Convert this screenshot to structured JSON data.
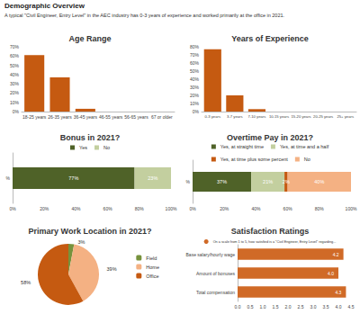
{
  "header": {
    "title": "Demographic Overview",
    "subtitle": "A typical \"Civil Engineer, Entry Level\" in the AEC industry has 0-3 years of experience and worked primarily at the office in 2021."
  },
  "chart_data": [
    {
      "type": "bar",
      "title": "Age Range",
      "categories": [
        "18-25 years",
        "26-35 years",
        "36-45 years",
        "46-55 years",
        "56-65 years",
        "67 or older"
      ],
      "values": [
        61,
        37,
        3,
        0,
        0,
        0
      ],
      "color": "#c55a11",
      "ylim": [
        0,
        70
      ],
      "yticks": [
        {
          "value": 0,
          "label": "0%"
        },
        {
          "value": 10,
          "label": "10%"
        },
        {
          "value": 20,
          "label": "20%"
        },
        {
          "value": 30,
          "label": "30%"
        },
        {
          "value": 40,
          "label": "40%"
        },
        {
          "value": 50,
          "label": "50%"
        },
        {
          "value": 60,
          "label": "60%"
        },
        {
          "value": 70,
          "label": "70%"
        }
      ],
      "grid": false
    },
    {
      "type": "bar",
      "title": "Years of Experience",
      "categories": [
        "0-3 years",
        "3-7 years",
        "7-10 years",
        "10-15 years",
        "15-20 years",
        "20-25 years",
        "25+ years"
      ],
      "values": [
        77,
        20,
        3,
        0,
        0,
        0,
        0
      ],
      "color": "#c55a11",
      "ylim": [
        0,
        80
      ],
      "yticks": [
        {
          "value": 0,
          "label": "0%"
        },
        {
          "value": 10,
          "label": "10%"
        },
        {
          "value": 20,
          "label": "20%"
        },
        {
          "value": 30,
          "label": "30%"
        },
        {
          "value": 40,
          "label": "40%"
        },
        {
          "value": 50,
          "label": "50%"
        },
        {
          "value": 60,
          "label": "60%"
        },
        {
          "value": 70,
          "label": "70%"
        },
        {
          "value": 80,
          "label": "80%"
        }
      ],
      "grid": false
    },
    {
      "type": "bar",
      "title": "Bonus in 2021?",
      "orientation": "horizontal",
      "stacked": true,
      "categories": [
        "%"
      ],
      "series": [
        {
          "name": "Yes",
          "color": "#4f6228",
          "values": [
            77
          ],
          "value_labels": [
            "77%"
          ]
        },
        {
          "name": "No",
          "color": "#c3cf9f",
          "values": [
            23
          ],
          "value_labels": [
            "23%"
          ]
        }
      ],
      "xlim": [
        0,
        100
      ],
      "xticks": [
        {
          "value": 0,
          "label": "0%"
        },
        {
          "value": 20,
          "label": "20%"
        },
        {
          "value": 40,
          "label": "40%"
        },
        {
          "value": 60,
          "label": "60%"
        },
        {
          "value": 80,
          "label": "80%"
        },
        {
          "value": 100,
          "label": "100%"
        }
      ],
      "legend": "top",
      "data_labels": true,
      "grid": false
    },
    {
      "type": "bar",
      "title": "Overtime Pay in 2021?",
      "orientation": "horizontal",
      "stacked": true,
      "categories": [
        "%"
      ],
      "series": [
        {
          "name": "Yes, at straight time",
          "color": "#4f6228",
          "values": [
            37
          ],
          "value_labels": [
            "37%"
          ]
        },
        {
          "name": "Yes, at time and a half",
          "color": "#c3cf9f",
          "values": [
            21
          ],
          "value_labels": [
            "21%"
          ]
        },
        {
          "name": "Yes, at time plus some percent",
          "color": "#c55a11",
          "values": [
            2
          ],
          "value_labels": [
            "2%"
          ]
        },
        {
          "name": "No",
          "color": "#f4b183",
          "values": [
            40
          ],
          "value_labels": [
            "40%"
          ]
        }
      ],
      "xlim": [
        0,
        100
      ],
      "xticks": [
        {
          "value": 0,
          "label": "0%"
        },
        {
          "value": 20,
          "label": "20%"
        },
        {
          "value": 40,
          "label": "40%"
        },
        {
          "value": 60,
          "label": "60%"
        },
        {
          "value": 80,
          "label": "80%"
        },
        {
          "value": 100,
          "label": "100%"
        }
      ],
      "legend": "top",
      "data_labels": true,
      "grid": false
    },
    {
      "type": "pie",
      "title": "Primary Work Location in 2021?",
      "categories": [
        "Field",
        "Home",
        "Office"
      ],
      "values": [
        3,
        39,
        58
      ],
      "value_labels": [
        "3%",
        "39%",
        "58%"
      ],
      "colors": [
        "#76923c",
        "#f4b183",
        "#c55a11"
      ],
      "legend": "right",
      "data_labels": true
    },
    {
      "type": "bar",
      "title": "Satisfaction Ratings",
      "orientation": "horizontal",
      "categories": [
        "Base salary/hourly wage",
        "Amount of bonuses",
        "Total compensation"
      ],
      "series": [
        {
          "name": "On a scale from 1 to 5, how satisfied is a \"Civil Engineer, Entry Level\" regarding...",
          "color": "#d06a27",
          "values": [
            4.2,
            4.0,
            4.3
          ],
          "value_labels": [
            "4.2",
            "4.0",
            "4.3"
          ]
        }
      ],
      "xlim": [
        0,
        4.5
      ],
      "xticks": [
        {
          "value": 0,
          "label": "0.0"
        },
        {
          "value": 0.5,
          "label": "0.5"
        },
        {
          "value": 1,
          "label": "1.0"
        },
        {
          "value": 1.5,
          "label": "1.5"
        },
        {
          "value": 2,
          "label": "2.0"
        },
        {
          "value": 2.5,
          "label": "2.5"
        },
        {
          "value": 3,
          "label": "3.0"
        },
        {
          "value": 3.5,
          "label": "3.5"
        },
        {
          "value": 4,
          "label": "4.0"
        },
        {
          "value": 4.5,
          "label": "4.5"
        }
      ],
      "legend": "top",
      "data_labels": true,
      "grid": false
    }
  ]
}
